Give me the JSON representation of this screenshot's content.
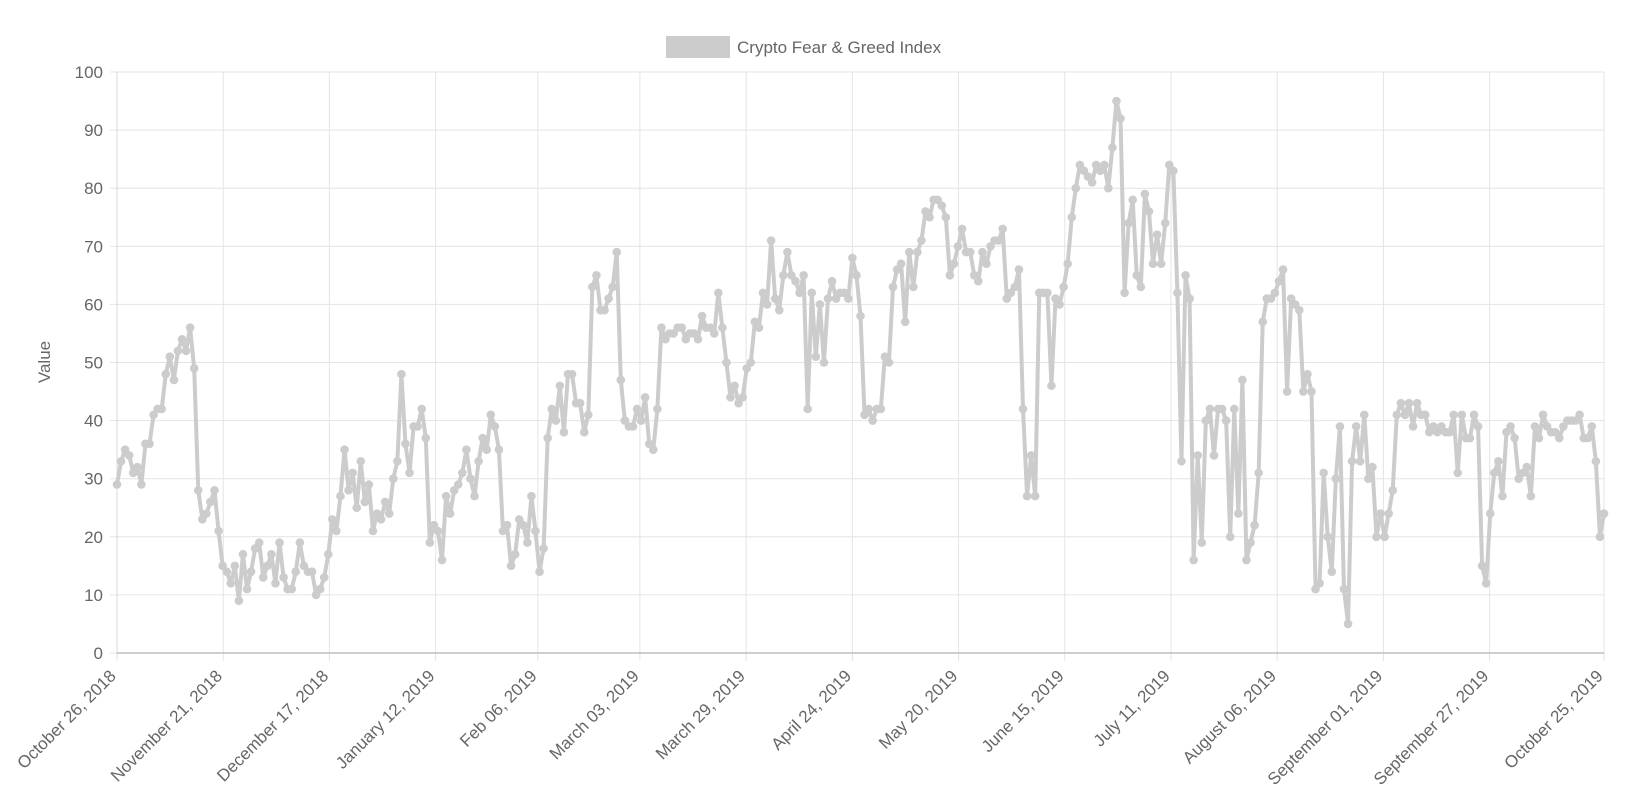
{
  "chart_data": {
    "type": "line",
    "legend": {
      "label": "Crypto Fear & Greed Index",
      "position": "top",
      "swatch_color": "#cccccc"
    },
    "ylabel": "Value",
    "xlabel": "",
    "ylim": [
      0,
      100
    ],
    "y_ticks": [
      0,
      10,
      20,
      30,
      40,
      50,
      60,
      70,
      80,
      90,
      100
    ],
    "x_start_date": "2018-10-26",
    "x_end_date": "2019-10-25",
    "x_ticks": [
      "October 26, 2018",
      "November 21, 2018",
      "December 17, 2018",
      "January 12, 2019",
      "Feb 06, 2019",
      "March 03, 2019",
      "March 29, 2019",
      "April 24, 2019",
      "May 20, 2019",
      "June 15, 2019",
      "July 11, 2019",
      "August 06, 2019",
      "September 01, 2019",
      "September 27, 2019",
      "October 25, 2019"
    ],
    "grid": true,
    "line_color": "#cccccc",
    "series": [
      {
        "name": "Crypto Fear & Greed Index",
        "values": [
          29,
          33,
          35,
          34,
          31,
          32,
          29,
          36,
          36,
          41,
          42,
          42,
          48,
          51,
          47,
          52,
          54,
          52,
          56,
          49,
          28,
          23,
          24,
          26,
          28,
          21,
          15,
          14,
          12,
          15,
          9,
          17,
          11,
          14,
          18,
          19,
          13,
          15,
          17,
          12,
          19,
          13,
          11,
          11,
          14,
          19,
          15,
          14,
          14,
          10,
          11,
          13,
          17,
          23,
          21,
          27,
          35,
          28,
          31,
          25,
          33,
          26,
          29,
          21,
          24,
          23,
          26,
          24,
          30,
          33,
          48,
          36,
          31,
          39,
          39,
          42,
          37,
          19,
          22,
          21,
          16,
          27,
          24,
          28,
          29,
          31,
          35,
          30,
          27,
          33,
          37,
          35,
          41,
          39,
          35,
          21,
          22,
          15,
          17,
          23,
          22,
          19,
          27,
          21,
          14,
          18,
          37,
          42,
          40,
          46,
          38,
          48,
          48,
          43,
          43,
          38,
          41,
          63,
          65,
          59,
          59,
          61,
          63,
          69,
          47,
          40,
          39,
          39,
          42,
          40,
          44,
          36,
          35,
          42,
          56,
          54,
          55,
          55,
          56,
          56,
          54,
          55,
          55,
          54,
          58,
          56,
          56,
          55,
          62,
          56,
          50,
          44,
          46,
          43,
          44,
          49,
          50,
          57,
          56,
          62,
          60,
          71,
          61,
          59,
          65,
          69,
          65,
          64,
          62,
          65,
          42,
          62,
          51,
          60,
          50,
          61,
          64,
          61,
          62,
          62,
          61,
          68,
          65,
          58,
          41,
          42,
          40,
          42,
          42,
          51,
          50,
          63,
          66,
          67,
          57,
          69,
          63,
          69,
          71,
          76,
          75,
          78,
          78,
          77,
          75,
          65,
          67,
          70,
          73,
          69,
          69,
          65,
          64,
          69,
          67,
          70,
          71,
          71,
          73,
          61,
          62,
          63,
          66,
          42,
          27,
          34,
          27,
          62,
          62,
          62,
          46,
          61,
          60,
          63,
          67,
          75,
          80,
          84,
          83,
          82,
          81,
          84,
          83,
          84,
          80,
          87,
          95,
          92,
          62,
          74,
          78,
          65,
          63,
          79,
          76,
          67,
          72,
          67,
          74,
          84,
          83,
          62,
          33,
          65,
          61,
          16,
          34,
          19,
          40,
          42,
          34,
          42,
          42,
          40,
          20,
          42,
          24,
          47,
          16,
          19,
          22,
          31,
          57,
          61,
          61,
          62,
          64,
          66,
          45,
          61,
          60,
          59,
          45,
          48,
          45,
          11,
          12,
          31,
          20,
          14,
          30,
          39,
          11,
          5,
          33,
          39,
          33,
          41,
          30,
          32,
          20,
          24,
          20,
          24,
          28,
          41,
          43,
          41,
          43,
          39,
          43,
          41,
          41,
          38,
          39,
          38,
          39,
          38,
          38,
          41,
          31,
          41,
          37,
          37,
          41,
          39,
          15,
          12,
          24,
          31,
          33,
          27,
          38,
          39,
          37,
          30,
          31,
          32,
          27,
          39,
          37,
          41,
          39,
          38,
          38,
          37,
          39,
          40,
          40,
          40,
          41,
          37,
          37,
          39,
          33,
          20,
          24
        ]
      }
    ]
  }
}
